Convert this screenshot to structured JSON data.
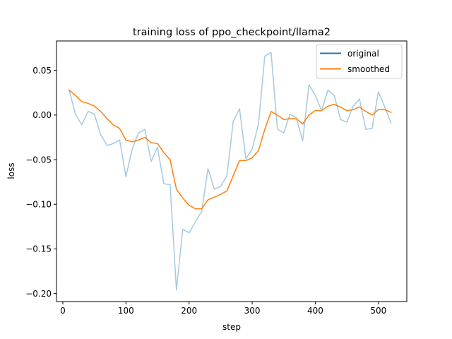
{
  "chart_data": {
    "type": "line",
    "title": "training loss of ppo_checkpoint/llama2",
    "xlabel": "step",
    "ylabel": "loss",
    "xlim": [
      -10,
      545
    ],
    "ylim": [
      -0.209,
      0.083
    ],
    "xticks": [
      0,
      100,
      200,
      300,
      400,
      500
    ],
    "yticks": [
      -0.2,
      -0.15,
      -0.1,
      -0.05,
      0.0,
      0.05
    ],
    "xtick_labels": [
      "0",
      "100",
      "200",
      "300",
      "400",
      "500"
    ],
    "ytick_labels": [
      "−0.20",
      "−0.15",
      "−0.10",
      "−0.05",
      "0.00",
      "0.05"
    ],
    "legend_position": "top-right",
    "grid": false,
    "x": [
      10,
      20,
      30,
      40,
      50,
      60,
      70,
      80,
      90,
      100,
      110,
      120,
      130,
      140,
      150,
      160,
      170,
      180,
      190,
      200,
      210,
      220,
      230,
      240,
      250,
      260,
      270,
      280,
      290,
      300,
      310,
      320,
      330,
      340,
      350,
      360,
      370,
      380,
      390,
      400,
      410,
      420,
      430,
      440,
      450,
      460,
      470,
      480,
      490,
      500,
      510,
      520
    ],
    "series": [
      {
        "name": "original",
        "color": "#1f77b4",
        "opacity": 0.4,
        "values": [
          0.028,
          0.001,
          -0.011,
          0.004,
          0.001,
          -0.022,
          -0.034,
          -0.032,
          -0.028,
          -0.069,
          -0.038,
          -0.02,
          -0.016,
          -0.052,
          -0.036,
          -0.077,
          -0.078,
          -0.196,
          -0.128,
          -0.132,
          -0.12,
          -0.108,
          -0.06,
          -0.083,
          -0.08,
          -0.068,
          -0.007,
          0.007,
          -0.049,
          -0.038,
          -0.01,
          0.066,
          0.07,
          -0.016,
          -0.02,
          0.001,
          -0.003,
          -0.029,
          0.034,
          0.022,
          0.005,
          0.028,
          0.022,
          -0.005,
          -0.008,
          0.01,
          0.018,
          -0.016,
          -0.015,
          0.026,
          0.009,
          -0.009
        ]
      },
      {
        "name": "smoothed",
        "color": "#ff7f0e",
        "opacity": 1,
        "values": [
          0.028,
          0.022,
          0.015,
          0.013,
          0.01,
          0.004,
          -0.004,
          -0.011,
          -0.015,
          -0.028,
          -0.03,
          -0.028,
          -0.025,
          -0.031,
          -0.032,
          -0.042,
          -0.05,
          -0.083,
          -0.093,
          -0.101,
          -0.105,
          -0.105,
          -0.095,
          -0.092,
          -0.089,
          -0.085,
          -0.068,
          -0.051,
          -0.051,
          -0.048,
          -0.04,
          -0.016,
          0.004,
          0.0,
          -0.005,
          -0.004,
          -0.004,
          -0.01,
          0.0,
          0.005,
          0.005,
          0.01,
          0.012,
          0.009,
          0.005,
          0.006,
          0.009,
          0.004,
          0.0,
          0.006,
          0.006,
          0.003
        ]
      }
    ]
  }
}
